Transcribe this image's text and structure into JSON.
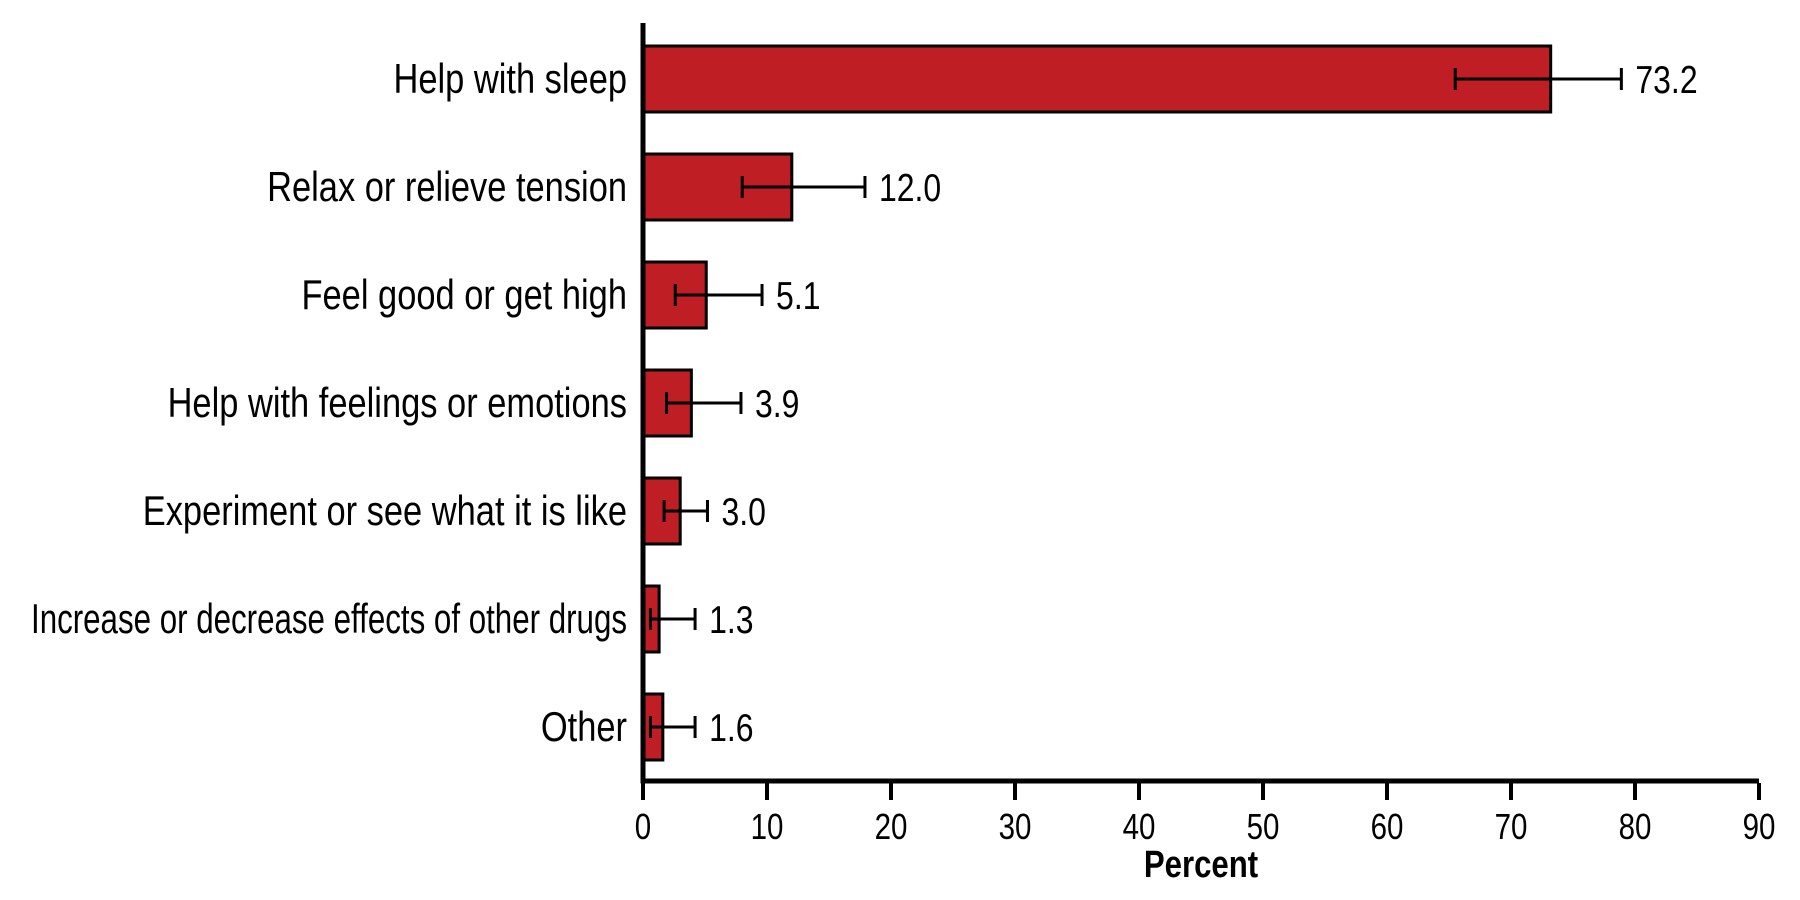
{
  "page": {
    "background": "#ffffff"
  },
  "chart_data": {
    "type": "bar",
    "orientation": "horizontal",
    "title": "",
    "xlabel": "Percent",
    "ylabel": "",
    "xlim": [
      0,
      90
    ],
    "xticks": [
      0,
      10,
      20,
      30,
      40,
      50,
      60,
      70,
      80,
      90
    ],
    "grid": false,
    "legend": false,
    "bar_color": "#BE1E24",
    "bar_border_color": "#000000",
    "axis_color": "#000000",
    "error_bar_color": "#000000",
    "text_color": "#000000",
    "categories": [
      "Help with sleep",
      "Relax or relieve tension",
      "Feel good or get high",
      "Help with feelings or emotions",
      "Experiment or see what it is like",
      "Increase or decrease effects of other drugs",
      "Other"
    ],
    "values": [
      73.2,
      12.0,
      5.1,
      3.9,
      3.0,
      1.3,
      1.6
    ],
    "value_labels": [
      "73.2",
      "12.0",
      "5.1",
      "3.9",
      "3.0",
      "1.3",
      "1.6"
    ],
    "error_bars": [
      {
        "low": 65.5,
        "high": 78.9
      },
      {
        "low": 8.0,
        "high": 17.9
      },
      {
        "low": 2.6,
        "high": 9.6
      },
      {
        "low": 1.9,
        "high": 7.9
      },
      {
        "low": 1.7,
        "high": 5.2
      },
      {
        "low": 0.6,
        "high": 4.2
      },
      {
        "low": 0.6,
        "high": 4.2
      }
    ]
  }
}
